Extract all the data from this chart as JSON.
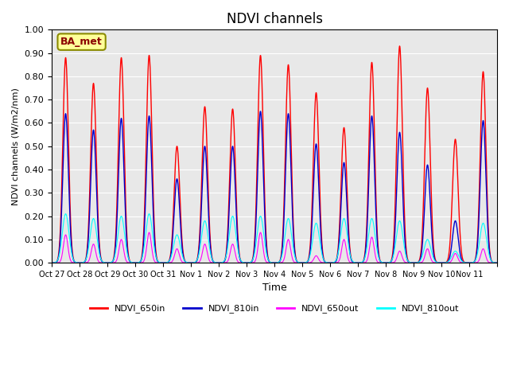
{
  "title": "NDVI channels",
  "xlabel": "Time",
  "ylabel": "NDVI channels (W/m2/nm)",
  "ylim": [
    0.0,
    1.0
  ],
  "yticks": [
    0.0,
    0.1,
    0.2,
    0.3,
    0.4,
    0.5,
    0.6,
    0.7,
    0.8,
    0.9,
    1.0
  ],
  "ytick_labels": [
    "0.00",
    "0.10",
    "0.20",
    "0.30",
    "0.40",
    "0.50",
    "0.60",
    "0.70",
    "0.80",
    "0.90",
    "1.00"
  ],
  "xtick_positions": [
    0,
    1,
    2,
    3,
    4,
    5,
    6,
    7,
    8,
    9,
    10,
    11,
    12,
    13,
    14,
    15,
    16
  ],
  "xtick_labels": [
    "Oct 27",
    "Oct 28",
    "Oct 29",
    "Oct 30",
    "Oct 31",
    "Nov 1",
    "Nov 2",
    "Nov 3",
    "Nov 4",
    "Nov 5",
    "Nov 6",
    "Nov 7",
    "Nov 8",
    "Nov 9",
    "Nov 10",
    "Nov 11",
    ""
  ],
  "colors": {
    "NDVI_650in": "#FF0000",
    "NDVI_810in": "#0000CC",
    "NDVI_650out": "#FF00FF",
    "NDVI_810out": "#00FFFF"
  },
  "background_color": "#E8E8E8",
  "annotation_text": "BA_met",
  "annotation_facecolor": "#FFFF99",
  "annotation_edgecolor": "#8B8B00",
  "annotation_textcolor": "#8B0000",
  "peaks_650in": [
    0.88,
    0.77,
    0.88,
    0.89,
    0.5,
    0.67,
    0.66,
    0.89,
    0.85,
    0.73,
    0.58,
    0.86,
    0.93,
    0.75,
    0.53,
    0.82
  ],
  "peaks_810in": [
    0.64,
    0.57,
    0.62,
    0.63,
    0.36,
    0.5,
    0.5,
    0.65,
    0.64,
    0.51,
    0.43,
    0.63,
    0.56,
    0.42,
    0.18,
    0.61
  ],
  "peaks_650out": [
    0.12,
    0.08,
    0.1,
    0.13,
    0.06,
    0.08,
    0.08,
    0.13,
    0.1,
    0.03,
    0.1,
    0.11,
    0.05,
    0.06,
    0.04,
    0.06
  ],
  "peaks_810out": [
    0.21,
    0.19,
    0.2,
    0.21,
    0.12,
    0.18,
    0.2,
    0.2,
    0.19,
    0.17,
    0.19,
    0.19,
    0.18,
    0.1,
    0.05,
    0.17
  ],
  "n_days": 16,
  "pts_per_day": 120,
  "sigma": 0.1,
  "sigma_out": 0.08,
  "sigma_810out": 0.12,
  "title_fontsize": 12,
  "legend_fontsize": 8,
  "axis_fontsize": 8,
  "ylabel_fontsize": 8,
  "xlabel_fontsize": 9
}
